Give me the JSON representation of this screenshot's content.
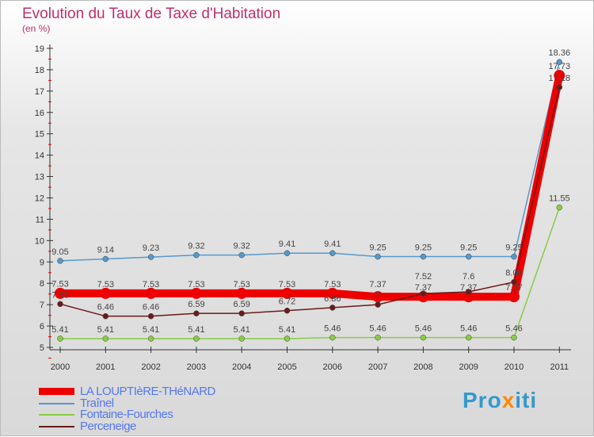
{
  "chart_data": {
    "type": "line",
    "title": "Evolution du Taux de Taxe d'Habitation",
    "subtitle": "(en %)",
    "x": [
      "2000",
      "2001",
      "2002",
      "2003",
      "2004",
      "2005",
      "2006",
      "2007",
      "2008",
      "2009",
      "2010",
      "2011"
    ],
    "ylim": [
      5,
      19
    ],
    "yticks": [
      "5",
      "6",
      "7",
      "8",
      "9",
      "10",
      "11",
      "12",
      "13",
      "14",
      "15",
      "16",
      "17",
      "18",
      "19"
    ],
    "series": [
      {
        "name": "LA LOUPTIèRE-THéNARD",
        "color": "#ee0000",
        "values": [
          7.53,
          7.53,
          7.53,
          7.53,
          7.53,
          7.53,
          7.53,
          7.37,
          7.37,
          7.37,
          7.37,
          17.73
        ]
      },
      {
        "name": "Traînel",
        "color": "#5599cc",
        "values": [
          9.05,
          9.14,
          9.23,
          9.32,
          9.32,
          9.41,
          9.41,
          9.25,
          9.25,
          9.25,
          9.25,
          18.36
        ]
      },
      {
        "name": "Fontaine-Fourches",
        "color": "#88cc44",
        "values": [
          5.41,
          5.41,
          5.41,
          5.41,
          5.41,
          5.41,
          5.46,
          5.46,
          5.46,
          5.46,
          5.46,
          11.55
        ]
      },
      {
        "name": "Perceneige",
        "color": "#6b1a1a",
        "values": [
          7.03,
          6.46,
          6.46,
          6.59,
          6.59,
          6.72,
          6.86,
          7,
          7.52,
          7.6,
          8.06,
          17.18
        ]
      }
    ]
  },
  "logo": "ProXiti"
}
